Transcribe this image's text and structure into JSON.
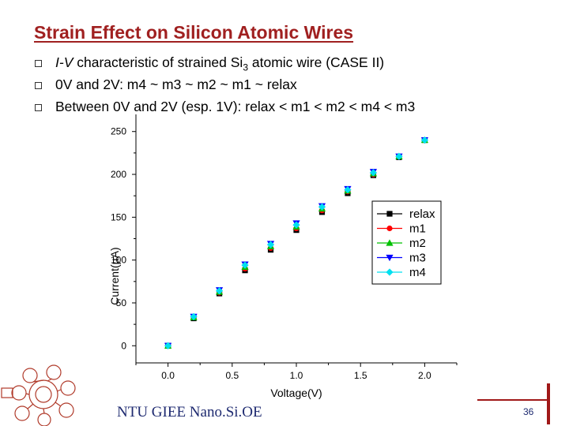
{
  "slide": {
    "title": "Strain Effect on Silicon Atomic Wires",
    "bullets": [
      {
        "italic": "I-V",
        "text": " characteristic of strained Si",
        "sub": "3",
        "tail": " atomic wire (CASE II)"
      },
      {
        "italic": "",
        "text": "0V and 2V: m4 ~ m3 ~ m2 ~ m1 ~ relax",
        "sub": "",
        "tail": ""
      },
      {
        "italic": "",
        "text": "Between 0V and 2V (esp. 1V): relax < m1 < m2 < m4 < m3",
        "sub": "",
        "tail": ""
      }
    ],
    "footer": "NTU GIEE Nano.Si.OE",
    "page_number": "36"
  },
  "colors": {
    "title": "#a02020",
    "relax": "#000000",
    "m1": "#ff0000",
    "m2": "#00c000",
    "m3": "#0000ff",
    "m4": "#00e0f0"
  },
  "chart_data": {
    "type": "scatter",
    "xlabel": "Voltage(V)",
    "ylabel": "Current(µA)",
    "xlim": [
      -0.25,
      2.25
    ],
    "ylim": [
      -20,
      270
    ],
    "xticks": [
      0.0,
      0.5,
      1.0,
      1.5,
      2.0
    ],
    "xtick_labels": [
      "0.0",
      "0.5",
      "1.0",
      "1.5",
      "2.0"
    ],
    "yticks": [
      0,
      50,
      100,
      150,
      200,
      250
    ],
    "ytick_labels": [
      "0",
      "50",
      "100",
      "150",
      "200",
      "250"
    ],
    "legend_position": "right",
    "x": [
      0.0,
      0.2,
      0.4,
      0.6,
      0.8,
      1.0,
      1.2,
      1.4,
      1.6,
      1.8,
      2.0
    ],
    "series": [
      {
        "name": "relax",
        "marker": "square",
        "values": [
          0,
          32,
          61,
          88,
          112,
          135,
          156,
          178,
          199,
          220,
          240
        ]
      },
      {
        "name": "m1",
        "marker": "circle",
        "values": [
          0,
          33,
          62,
          90,
          114,
          137,
          158,
          180,
          200,
          221,
          240
        ]
      },
      {
        "name": "m2",
        "marker": "triangle-up",
        "values": [
          0,
          33,
          63,
          92,
          116,
          139,
          160,
          181,
          201,
          221,
          240
        ]
      },
      {
        "name": "m3",
        "marker": "triangle-down",
        "values": [
          0,
          34,
          65,
          95,
          119,
          143,
          163,
          183,
          203,
          221,
          240
        ]
      },
      {
        "name": "m4",
        "marker": "diamond",
        "values": [
          0,
          34,
          64,
          94,
          118,
          141,
          162,
          182,
          202,
          221,
          240
        ]
      }
    ]
  }
}
